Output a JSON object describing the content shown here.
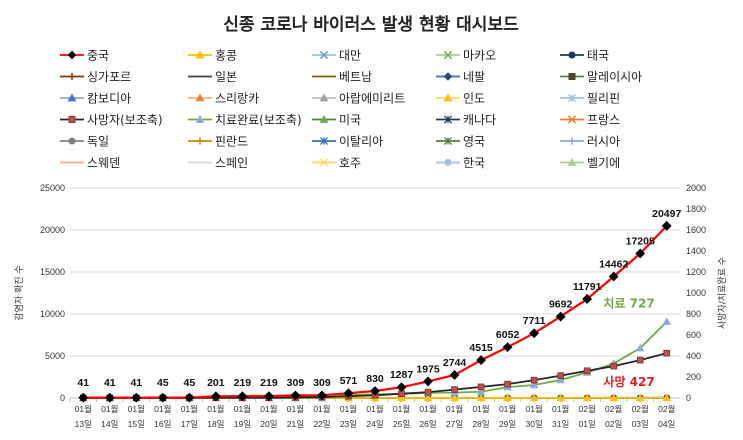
{
  "chart_data": {
    "type": "line",
    "title": "신종 코로나 바이러스 발생 현황 대시보드",
    "ylabel_left": "감염자 확진 수",
    "ylabel_right": "사망자/치료완료 수",
    "ylim_left": [
      0,
      25000
    ],
    "ylim_right": [
      0,
      2000
    ],
    "yticks_left": [
      "0",
      "5000",
      "10000",
      "15000",
      "20000",
      "25000"
    ],
    "yticks_right": [
      "0",
      "200",
      "400",
      "600",
      "800",
      "1000",
      "1200",
      "1400",
      "1600",
      "1800",
      "2000"
    ],
    "grid": true,
    "legend_position": "top",
    "categories": [
      [
        "01월",
        "13일"
      ],
      [
        "01월",
        "14일"
      ],
      [
        "01월",
        "15일"
      ],
      [
        "01월",
        "16일"
      ],
      [
        "01월",
        "17일"
      ],
      [
        "01월",
        "18일"
      ],
      [
        "01월",
        "19일"
      ],
      [
        "01월",
        "20일"
      ],
      [
        "01월",
        "21일"
      ],
      [
        "01월",
        "22일"
      ],
      [
        "01월",
        "23일"
      ],
      [
        "01월",
        "24일"
      ],
      [
        "01월",
        "25일"
      ],
      [
        "01월",
        "26일"
      ],
      [
        "01월",
        "27일"
      ],
      [
        "01월",
        "28일"
      ],
      [
        "01월",
        "29일"
      ],
      [
        "01월",
        "30일"
      ],
      [
        "01월",
        "31일"
      ],
      [
        "02월",
        "01일"
      ],
      [
        "02월",
        "02일"
      ],
      [
        "02월",
        "03일"
      ],
      [
        "02월",
        "04일"
      ]
    ],
    "legend": [
      {
        "name": "중국",
        "color": "#ff0000",
        "marker": "diamond",
        "mcolor": "#000000"
      },
      {
        "name": "홍콩",
        "color": "#ffc000",
        "marker": "triangle",
        "mcolor": "#ffc000"
      },
      {
        "name": "대만",
        "color": "#9dc3e6",
        "marker": "x",
        "mcolor": "#5b9bd5"
      },
      {
        "name": "마카오",
        "color": "#a9d18e",
        "marker": "x",
        "mcolor": "#70ad47"
      },
      {
        "name": "태국",
        "color": "#1f3864",
        "marker": "circle",
        "mcolor": "#1f3864"
      },
      {
        "name": "싱가포르",
        "color": "#843c0c",
        "marker": "plus",
        "mcolor": "#843c0c"
      },
      {
        "name": "일본",
        "color": "#404040",
        "marker": "none",
        "mcolor": "#404040"
      },
      {
        "name": "베트남",
        "color": "#806000",
        "marker": "none",
        "mcolor": "#806000"
      },
      {
        "name": "네팔",
        "color": "#2e75b6",
        "marker": "diamond",
        "mcolor": "#1f4e79"
      },
      {
        "name": "말레이시아",
        "color": "#548235",
        "marker": "square",
        "mcolor": "#375623"
      },
      {
        "name": "캄보디아",
        "color": "#8faadc",
        "marker": "triangle",
        "mcolor": "#4472c4"
      },
      {
        "name": "스리랑카",
        "color": "#f4b183",
        "marker": "triangle",
        "mcolor": "#ed7d31"
      },
      {
        "name": "아랍에미리트",
        "color": "#bfbfbf",
        "marker": "triangle",
        "mcolor": "#a5a5a5"
      },
      {
        "name": "인도",
        "color": "#ffd966",
        "marker": "triangle",
        "mcolor": "#ffc000"
      },
      {
        "name": "필리핀",
        "color": "#9dc3e6",
        "marker": "star",
        "mcolor": "#9dc3e6"
      },
      {
        "name": "사망자(보조축)",
        "color": "#262626",
        "marker": "square",
        "mcolor": "#c0504d"
      },
      {
        "name": "치료완료(보조축)",
        "color": "#70ad47",
        "marker": "triangle",
        "mcolor": "#8faadc"
      },
      {
        "name": "미국",
        "color": "#548235",
        "marker": "triangle",
        "mcolor": "#70ad47"
      },
      {
        "name": "캐나다",
        "color": "#203864",
        "marker": "star",
        "mcolor": "#203864"
      },
      {
        "name": "프랑스",
        "color": "#ed7d31",
        "marker": "x",
        "mcolor": "#ed7d31"
      },
      {
        "name": "독일",
        "color": "#7f7f7f",
        "marker": "circle",
        "mcolor": "#7f7f7f"
      },
      {
        "name": "핀란드",
        "color": "#bf9000",
        "marker": "plus",
        "mcolor": "#bf9000"
      },
      {
        "name": "이탈리아",
        "color": "#2e75b6",
        "marker": "star",
        "mcolor": "#2e75b6"
      },
      {
        "name": "영국",
        "color": "#548235",
        "marker": "star",
        "mcolor": "#548235"
      },
      {
        "name": "러시아",
        "color": "#8faadc",
        "marker": "plus",
        "mcolor": "#8faadc"
      },
      {
        "name": "스웨덴",
        "color": "#f4b183",
        "marker": "none",
        "mcolor": "#f4b183"
      },
      {
        "name": "스페인",
        "color": "#d9d9d9",
        "marker": "none",
        "mcolor": "#d9d9d9"
      },
      {
        "name": "호주",
        "color": "#ffd966",
        "marker": "x",
        "mcolor": "#ffd966"
      },
      {
        "name": "한국",
        "color": "#9dc3e6",
        "marker": "circle",
        "mcolor": "#9dc3e6"
      },
      {
        "name": "벨기에",
        "color": "#a9d18e",
        "marker": "triangle",
        "mcolor": "#a9d18e"
      }
    ],
    "series": [
      {
        "name": "중국",
        "axis": "left",
        "color": "#ff0000",
        "marker": "diamond",
        "marker_color": "#000000",
        "values": [
          41,
          41,
          41,
          45,
          45,
          201,
          219,
          219,
          309,
          309,
          571,
          830,
          1287,
          1975,
          2744,
          4515,
          6052,
          7711,
          9692,
          11791,
          14462,
          17205,
          20497
        ],
        "labels": [
          "41",
          "41",
          "41",
          "45",
          "45",
          "201",
          "219",
          "219",
          "309",
          "309",
          "571",
          "830",
          "1287",
          "1975",
          "2744",
          "4515",
          "6052",
          "7711",
          "9692",
          "11791",
          "14462",
          "17205",
          "20497"
        ]
      },
      {
        "name": "사망자(보조축)",
        "axis": "right",
        "color": "#262626",
        "marker": "square",
        "marker_color": "#c0504d",
        "values": [
          1,
          1,
          1,
          2,
          2,
          3,
          3,
          3,
          6,
          9,
          17,
          26,
          41,
          56,
          80,
          106,
          132,
          170,
          213,
          259,
          304,
          361,
          427
        ]
      },
      {
        "name": "치료완료(보조축)",
        "axis": "right",
        "color": "#70ad47",
        "marker": "triangle",
        "marker_color": "#8faadc",
        "values": [
          0,
          0,
          0,
          0,
          0,
          0,
          0,
          0,
          0,
          0,
          30,
          34,
          38,
          49,
          51,
          60,
          103,
          124,
          171,
          243,
          328,
          475,
          727
        ]
      },
      {
        "name": "홍콩",
        "axis": "left",
        "color": "#ffc000",
        "marker": "triangle",
        "marker_color": "#ffc000",
        "values": [
          0,
          0,
          0,
          0,
          0,
          0,
          0,
          0,
          0,
          0,
          2,
          2,
          5,
          8,
          8,
          8,
          10,
          10,
          12,
          13,
          14,
          15,
          17
        ]
      },
      {
        "name": "일본",
        "axis": "left",
        "color": "#404040",
        "marker": "none",
        "marker_color": "#404040",
        "values": [
          1,
          1,
          1,
          1,
          1,
          1,
          1,
          1,
          1,
          1,
          1,
          2,
          2,
          4,
          4,
          7,
          7,
          11,
          15,
          20,
          20,
          20,
          22
        ]
      },
      {
        "name": "태국",
        "axis": "left",
        "color": "#1f3864",
        "marker": "circle",
        "marker_color": "#1f3864",
        "values": [
          1,
          1,
          1,
          2,
          2,
          2,
          2,
          4,
          4,
          4,
          5,
          5,
          7,
          8,
          8,
          14,
          14,
          14,
          19,
          19,
          19,
          19,
          25
        ]
      },
      {
        "name": "한국",
        "axis": "left",
        "color": "#9dc3e6",
        "marker": "circle",
        "marker_color": "#9dc3e6",
        "values": [
          0,
          0,
          0,
          0,
          0,
          0,
          0,
          1,
          1,
          1,
          1,
          2,
          2,
          3,
          4,
          4,
          4,
          4,
          11,
          12,
          15,
          15,
          16
        ]
      }
    ],
    "annotations": [
      {
        "text": "치료 727",
        "color": "#70ad47"
      },
      {
        "text": "사망 427",
        "color": "#e02020"
      }
    ]
  }
}
